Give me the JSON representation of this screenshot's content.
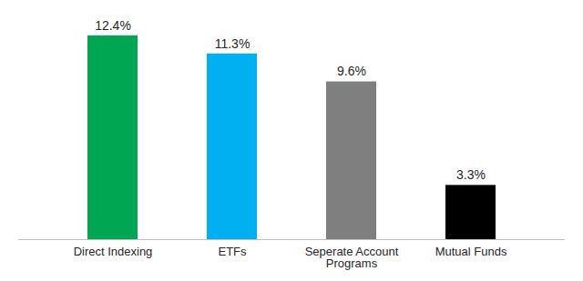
{
  "chart_data": {
    "type": "bar",
    "categories": [
      "Direct Indexing",
      "ETFs",
      "Seperate Account Programs",
      "Mutual Funds"
    ],
    "values": [
      12.4,
      11.3,
      9.6,
      3.3
    ],
    "value_labels": [
      "12.4%",
      "11.3%",
      "9.6%",
      "3.3%"
    ],
    "colors": [
      "#00a651",
      "#00b0f0",
      "#7f7f7f",
      "#000000"
    ],
    "ylim": [
      0,
      14
    ],
    "grid": false,
    "data_labels": true,
    "tick_labels": "x"
  }
}
